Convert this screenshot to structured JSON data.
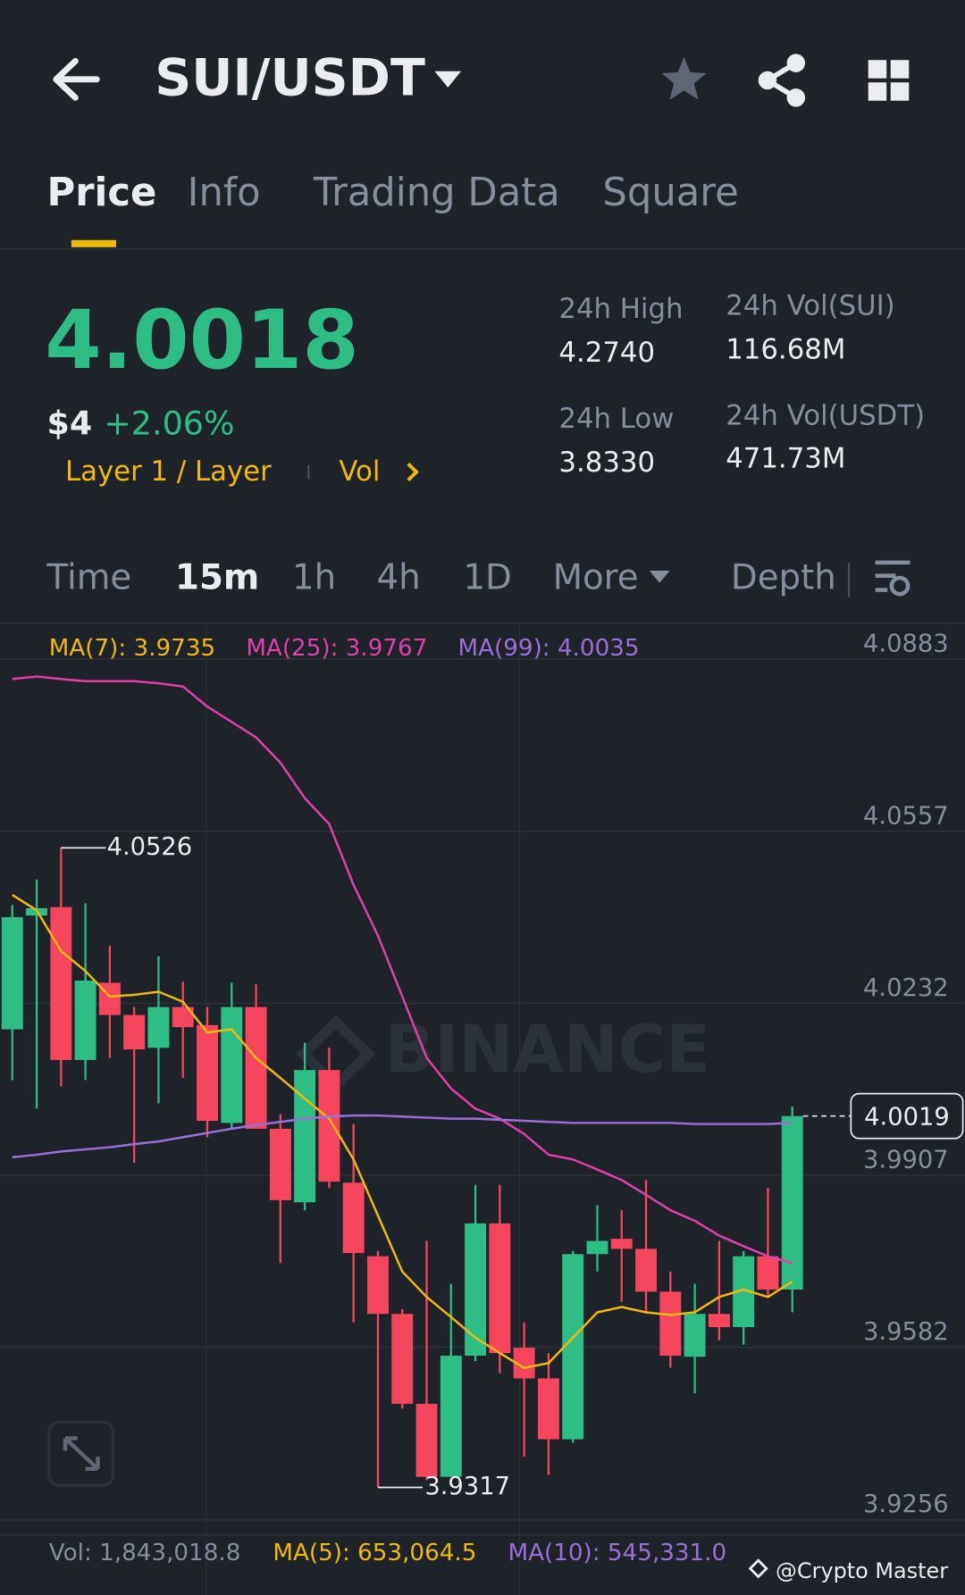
{
  "header": {
    "pair": "SUI/USDT"
  },
  "tabs": [
    "Price",
    "Info",
    "Trading Data",
    "Square"
  ],
  "ticker": {
    "price": "4.0018",
    "usd": "$4",
    "change": "+2.06%",
    "tag": "Layer 1 / Layer",
    "tag_vol": "Vol",
    "high_label": "24h High",
    "high": "4.2740",
    "low_label": "24h Low",
    "low": "3.8330",
    "vol_base_label": "24h Vol(SUI)",
    "vol_base": "116.68M",
    "vol_quote_label": "24h Vol(USDT)",
    "vol_quote": "471.73M"
  },
  "intervals": [
    "Time",
    "15m",
    "1h",
    "4h",
    "1D",
    "More",
    "Depth"
  ],
  "chart_data": {
    "type": "candlestick",
    "watermark": "BINANCE",
    "ylim": [
      3.9229,
      4.095
    ],
    "yticks": [
      4.0883,
      4.0557,
      4.0232,
      3.9907,
      3.9582,
      3.9256
    ],
    "grid": true,
    "up_color": "#2ebd85",
    "down_color": "#f6465d",
    "open": [
      4.0183,
      4.0398,
      4.0414,
      4.0125,
      4.0271,
      4.021,
      4.0148,
      4.0225,
      4.0191,
      4.0006,
      4.0225,
      3.9995,
      3.9856,
      4.0106,
      3.9893,
      3.9754,
      3.9645,
      3.9475,
      3.9337,
      3.9566,
      3.9816,
      3.9581,
      3.9523,
      3.9408,
      3.9758,
      3.9787,
      3.9768,
      3.9687,
      3.9564,
      3.9645,
      3.962,
      3.9754,
      3.9691
    ],
    "high": [
      4.0418,
      4.0466,
      4.0526,
      4.0421,
      4.0341,
      4.0225,
      4.0321,
      4.0273,
      4.0225,
      4.0271,
      4.0268,
      4.0023,
      4.0158,
      4.0148,
      4.0004,
      3.9764,
      3.9654,
      3.9783,
      3.9702,
      3.9889,
      3.9889,
      3.9629,
      3.9571,
      3.9764,
      3.985,
      3.9841,
      3.9898,
      3.9725,
      3.9702,
      3.9783,
      3.9764,
      3.9883,
      4.0037
    ],
    "low": [
      4.0087,
      4.0033,
      4.0075,
      4.0087,
      4.0129,
      3.9931,
      4.0043,
      4.0091,
      3.9979,
      3.9995,
      3.9995,
      3.9741,
      3.9841,
      3.9883,
      3.9629,
      3.9317,
      3.9466,
      3.9331,
      3.9337,
      3.9556,
      3.9533,
      3.9375,
      3.9341,
      3.9402,
      3.9725,
      3.9668,
      3.9648,
      3.9543,
      3.9495,
      3.9595,
      3.9587,
      3.9677,
      3.9648
    ],
    "close": [
      4.0395,
      4.0412,
      4.0125,
      4.0275,
      4.021,
      4.0145,
      4.0225,
      4.0187,
      4.001,
      4.0225,
      3.9995,
      3.986,
      4.0106,
      3.9895,
      3.976,
      3.9645,
      3.9475,
      3.9337,
      3.9566,
      3.9816,
      3.9571,
      3.9523,
      3.9408,
      3.9758,
      3.9783,
      3.9768,
      3.9687,
      3.9566,
      3.9645,
      3.962,
      3.9754,
      3.9691,
      4.0019
    ],
    "high_mark": 4.0526,
    "low_mark": 3.9317,
    "last_price": 4.0019,
    "series": [
      {
        "name": "MA(7): 3.9735",
        "color": "#f0b90b",
        "values": [
          4.0437,
          4.0408,
          4.0331,
          4.0293,
          4.0245,
          4.0248,
          4.0254,
          4.0235,
          4.0177,
          4.0183,
          4.0129,
          4.0091,
          4.0052,
          4.0014,
          3.9937,
          3.9831,
          3.9725,
          3.9677,
          3.9639,
          3.96,
          3.9571,
          3.9543,
          3.9552,
          3.96,
          3.9648,
          3.9658,
          3.9648,
          3.9643,
          3.9648,
          3.9677,
          3.9691,
          3.9677,
          3.9706
        ]
      },
      {
        "name": "MA(25): 3.9767",
        "color": "#e040a8",
        "values": [
          4.0845,
          4.085,
          4.0845,
          4.0841,
          4.0841,
          4.0841,
          4.0837,
          4.0831,
          4.0793,
          4.0764,
          4.0735,
          4.0687,
          4.062,
          4.0571,
          4.0456,
          4.036,
          4.0245,
          4.0129,
          4.0071,
          4.0033,
          4.0014,
          3.9985,
          3.9946,
          3.9937,
          3.9918,
          3.9898,
          3.987,
          3.9841,
          3.9821,
          3.9793,
          3.9773,
          3.9754,
          3.9741
        ]
      },
      {
        "name": "MA(99): 4.0035",
        "color": "#9b6fd6",
        "values": [
          3.9941,
          3.9946,
          3.9952,
          3.9956,
          3.996,
          3.9966,
          3.9971,
          3.9979,
          3.9987,
          3.9995,
          4.0002,
          4.0008,
          4.0014,
          4.0018,
          4.002,
          4.002,
          4.0018,
          4.0016,
          4.0014,
          4.0014,
          4.0012,
          4.001,
          4.0008,
          4.0006,
          4.0006,
          4.0006,
          4.0006,
          4.0006,
          4.0004,
          4.0004,
          4.0004,
          4.0004,
          4.0006
        ]
      }
    ]
  },
  "volume": {
    "vol": "Vol: 1,843,018.8",
    "ma5": "MA(5): 653,064.5",
    "ma10": "MA(10): 545,331.0"
  },
  "footer": {
    "watermark": "@Crypto Master"
  }
}
